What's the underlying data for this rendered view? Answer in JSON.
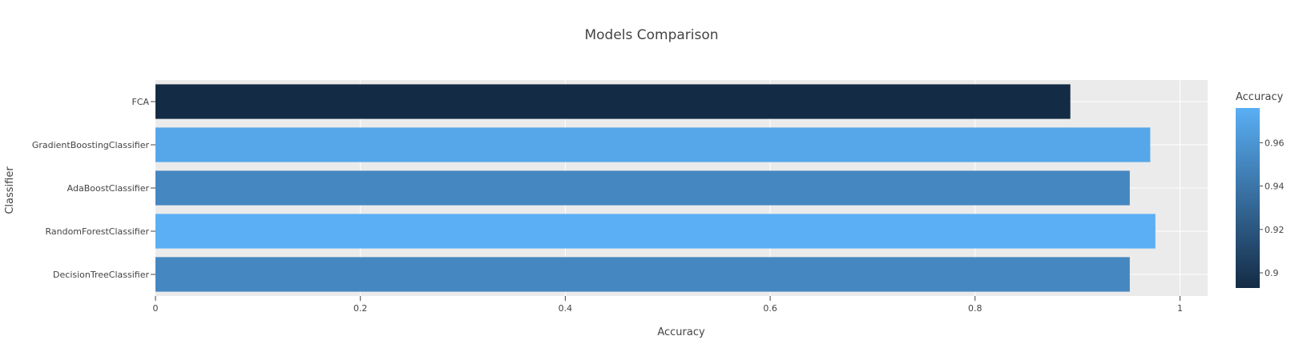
{
  "chart_data": {
    "type": "bar",
    "orientation": "horizontal",
    "title": "Models Comparison",
    "xlabel": "Accuracy",
    "ylabel": "Classifier",
    "categories": [
      "DecisionTreeClassifier",
      "RandomForestClassifier",
      "AdaBoostClassifier",
      "GradientBoostingClassifier",
      "FCA"
    ],
    "values": [
      0.951,
      0.976,
      0.951,
      0.971,
      0.893
    ],
    "xlim": [
      0,
      1.027
    ],
    "xticks": [
      0,
      0.2,
      0.4,
      0.6,
      0.8,
      1
    ],
    "xtick_labels": [
      "0",
      "0.2",
      "0.4",
      "0.6",
      "0.8",
      "1"
    ],
    "grid": true,
    "colorbar": {
      "title": "Accuracy",
      "range": [
        0.893,
        0.976
      ],
      "ticks": [
        0.9,
        0.92,
        0.94,
        0.96
      ],
      "tick_labels": [
        "0.9",
        "0.92",
        "0.94",
        "0.96"
      ],
      "color_low": "#142b45",
      "color_high": "#5aaff5"
    },
    "plot_background": "#ebebeb"
  }
}
